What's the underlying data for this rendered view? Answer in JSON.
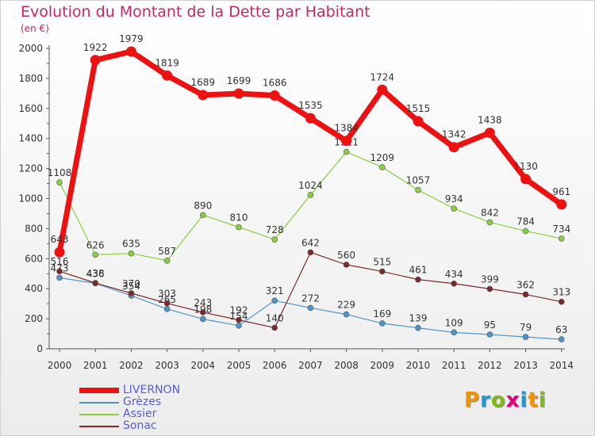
{
  "title": "Evolution du Montant de la Dette par Habitant",
  "unit_label": "(en €)",
  "logo": {
    "text": "Proxiti",
    "colors": [
      "#f29400",
      "#1c9ad6",
      "#83b81a",
      "#e5007e",
      "#1c9ad6",
      "#f29400",
      "#83b81a"
    ]
  },
  "chart_data": {
    "type": "line",
    "title": "Evolution du Montant de la Dette par Habitant",
    "ylabel": "(en €)",
    "xlabel": "",
    "x": [
      "2000",
      "2001",
      "2002",
      "2003",
      "2004",
      "2005",
      "2006",
      "2007",
      "2008",
      "2009",
      "2010",
      "2011",
      "2012",
      "2013",
      "2014"
    ],
    "ylim": [
      0,
      2000
    ],
    "yticks": [
      0,
      200,
      400,
      600,
      800,
      1000,
      1200,
      1400,
      1600,
      1800,
      2000
    ],
    "grid": false,
    "legend_position": "bottom-left",
    "series": [
      {
        "name": "LIVERNON",
        "color": "#ee1111",
        "emphasis": true,
        "values": [
          643,
          1922,
          1979,
          1819,
          1689,
          1699,
          1686,
          1535,
          1384,
          1724,
          1515,
          1342,
          1438,
          1130,
          961
        ],
        "labels": [
          "643",
          "1922",
          "1979",
          "1819",
          "1689",
          "1699",
          "1686",
          "1535",
          "1384",
          "1724",
          "1515",
          "1342",
          "1438",
          "1130",
          "961"
        ]
      },
      {
        "name": "Grèzes",
        "color": "#4f94c8",
        "values": [
          473,
          436,
          354,
          265,
          198,
          154,
          321,
          272,
          229,
          169,
          139,
          109,
          95,
          79,
          63
        ],
        "labels": [
          "473",
          "436",
          "354",
          "265",
          "198",
          "154",
          "321",
          "272",
          "229",
          "169",
          "139",
          "109",
          "95",
          "79",
          "63"
        ]
      },
      {
        "name": "Assier",
        "color": "#88d040",
        "values": [
          1108,
          626,
          635,
          587,
          890,
          810,
          728,
          1024,
          1311,
          1209,
          1057,
          934,
          842,
          784,
          734
        ],
        "labels": [
          "1108",
          "626",
          "635",
          "587",
          "890",
          "810",
          "728",
          "1024",
          "1311",
          "1209",
          "1057",
          "934",
          "842",
          "784",
          "734"
        ]
      },
      {
        "name": "Sonac",
        "color": "#7a2a2a",
        "values": [
          516,
          438,
          370,
          303,
          243,
          192,
          140,
          642,
          560,
          515,
          461,
          434,
          399,
          362,
          313
        ],
        "labels": [
          "516",
          "438",
          "370",
          "303",
          "243",
          "192",
          "140",
          "642",
          "560",
          "515",
          "461",
          "434",
          "399",
          "362",
          "313"
        ]
      }
    ]
  },
  "legend": [
    {
      "label": "LIVERNON",
      "color": "#ee1111",
      "text_color": "#5b5bd6"
    },
    {
      "label": "Grèzes",
      "color": "#4f94c8",
      "text_color": "#5b5bd6"
    },
    {
      "label": "Assier",
      "color": "#88d040",
      "text_color": "#5b5bd6"
    },
    {
      "label": "Sonac",
      "color": "#7a2a2a",
      "text_color": "#5b5bd6"
    }
  ]
}
